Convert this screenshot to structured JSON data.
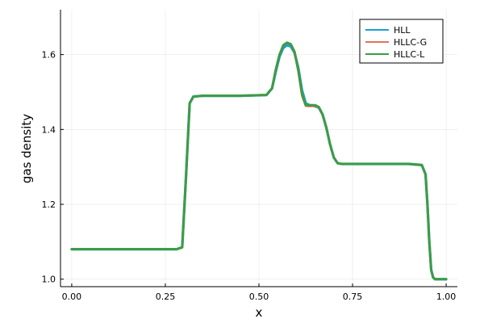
{
  "chart_data": {
    "type": "line",
    "title": "",
    "xlabel": "x",
    "ylabel": "gas density",
    "xlim": [
      -0.03,
      1.03
    ],
    "ylim": [
      0.98,
      1.72
    ],
    "xticks": [
      0.0,
      0.25,
      0.5,
      0.75,
      1.0
    ],
    "xtick_labels": [
      "0.00",
      "0.25",
      "0.50",
      "0.75",
      "1.00"
    ],
    "yticks": [
      1.0,
      1.2,
      1.4,
      1.6
    ],
    "ytick_labels": [
      "1.0",
      "1.2",
      "1.4",
      "1.6"
    ],
    "grid": true,
    "legend_position": "top-right",
    "series": [
      {
        "name": "HLL",
        "color": "#1f9fd0",
        "x": [
          0.0,
          0.28,
          0.295,
          0.305,
          0.315,
          0.325,
          0.35,
          0.45,
          0.52,
          0.535,
          0.545,
          0.555,
          0.565,
          0.575,
          0.585,
          0.595,
          0.605,
          0.615,
          0.625,
          0.635,
          0.65,
          0.66,
          0.67,
          0.68,
          0.69,
          0.7,
          0.71,
          0.72,
          0.8,
          0.9,
          0.935,
          0.945,
          0.95,
          0.955,
          0.96,
          0.965,
          0.97,
          0.98,
          1.0
        ],
        "y": [
          1.08,
          1.08,
          1.085,
          1.27,
          1.47,
          1.488,
          1.49,
          1.49,
          1.492,
          1.51,
          1.555,
          1.595,
          1.618,
          1.625,
          1.622,
          1.605,
          1.565,
          1.505,
          1.47,
          1.465,
          1.462,
          1.458,
          1.44,
          1.405,
          1.36,
          1.325,
          1.31,
          1.308,
          1.308,
          1.308,
          1.305,
          1.28,
          1.2,
          1.1,
          1.025,
          1.005,
          1.0,
          1.0,
          1.0
        ]
      },
      {
        "name": "HLLC-G",
        "color": "#e5725a",
        "x": [
          0.0,
          0.28,
          0.295,
          0.305,
          0.315,
          0.325,
          0.35,
          0.45,
          0.52,
          0.535,
          0.545,
          0.555,
          0.565,
          0.575,
          0.585,
          0.595,
          0.605,
          0.615,
          0.625,
          0.635,
          0.65,
          0.66,
          0.67,
          0.68,
          0.69,
          0.7,
          0.71,
          0.72,
          0.8,
          0.9,
          0.935,
          0.945,
          0.95,
          0.955,
          0.96,
          0.965,
          0.97,
          0.98,
          1.0
        ],
        "y": [
          1.08,
          1.08,
          1.085,
          1.27,
          1.47,
          1.488,
          1.49,
          1.49,
          1.492,
          1.51,
          1.56,
          1.6,
          1.624,
          1.632,
          1.628,
          1.605,
          1.555,
          1.49,
          1.463,
          1.462,
          1.463,
          1.458,
          1.44,
          1.405,
          1.36,
          1.325,
          1.31,
          1.308,
          1.308,
          1.308,
          1.305,
          1.28,
          1.2,
          1.1,
          1.025,
          1.005,
          1.0,
          1.0,
          1.0
        ]
      },
      {
        "name": "HLLC-L",
        "color": "#3e9b45",
        "x": [
          0.0,
          0.28,
          0.295,
          0.305,
          0.315,
          0.325,
          0.35,
          0.45,
          0.52,
          0.535,
          0.545,
          0.555,
          0.565,
          0.575,
          0.585,
          0.595,
          0.605,
          0.615,
          0.625,
          0.635,
          0.65,
          0.66,
          0.67,
          0.68,
          0.69,
          0.7,
          0.71,
          0.72,
          0.8,
          0.9,
          0.935,
          0.945,
          0.95,
          0.955,
          0.96,
          0.965,
          0.97,
          0.98,
          1.0
        ],
        "y": [
          1.08,
          1.08,
          1.085,
          1.27,
          1.47,
          1.488,
          1.49,
          1.49,
          1.492,
          1.51,
          1.56,
          1.6,
          1.625,
          1.632,
          1.628,
          1.608,
          1.56,
          1.495,
          1.465,
          1.465,
          1.465,
          1.46,
          1.44,
          1.405,
          1.36,
          1.325,
          1.31,
          1.308,
          1.308,
          1.308,
          1.305,
          1.28,
          1.2,
          1.1,
          1.025,
          1.005,
          1.0,
          1.0,
          1.0
        ]
      }
    ]
  }
}
